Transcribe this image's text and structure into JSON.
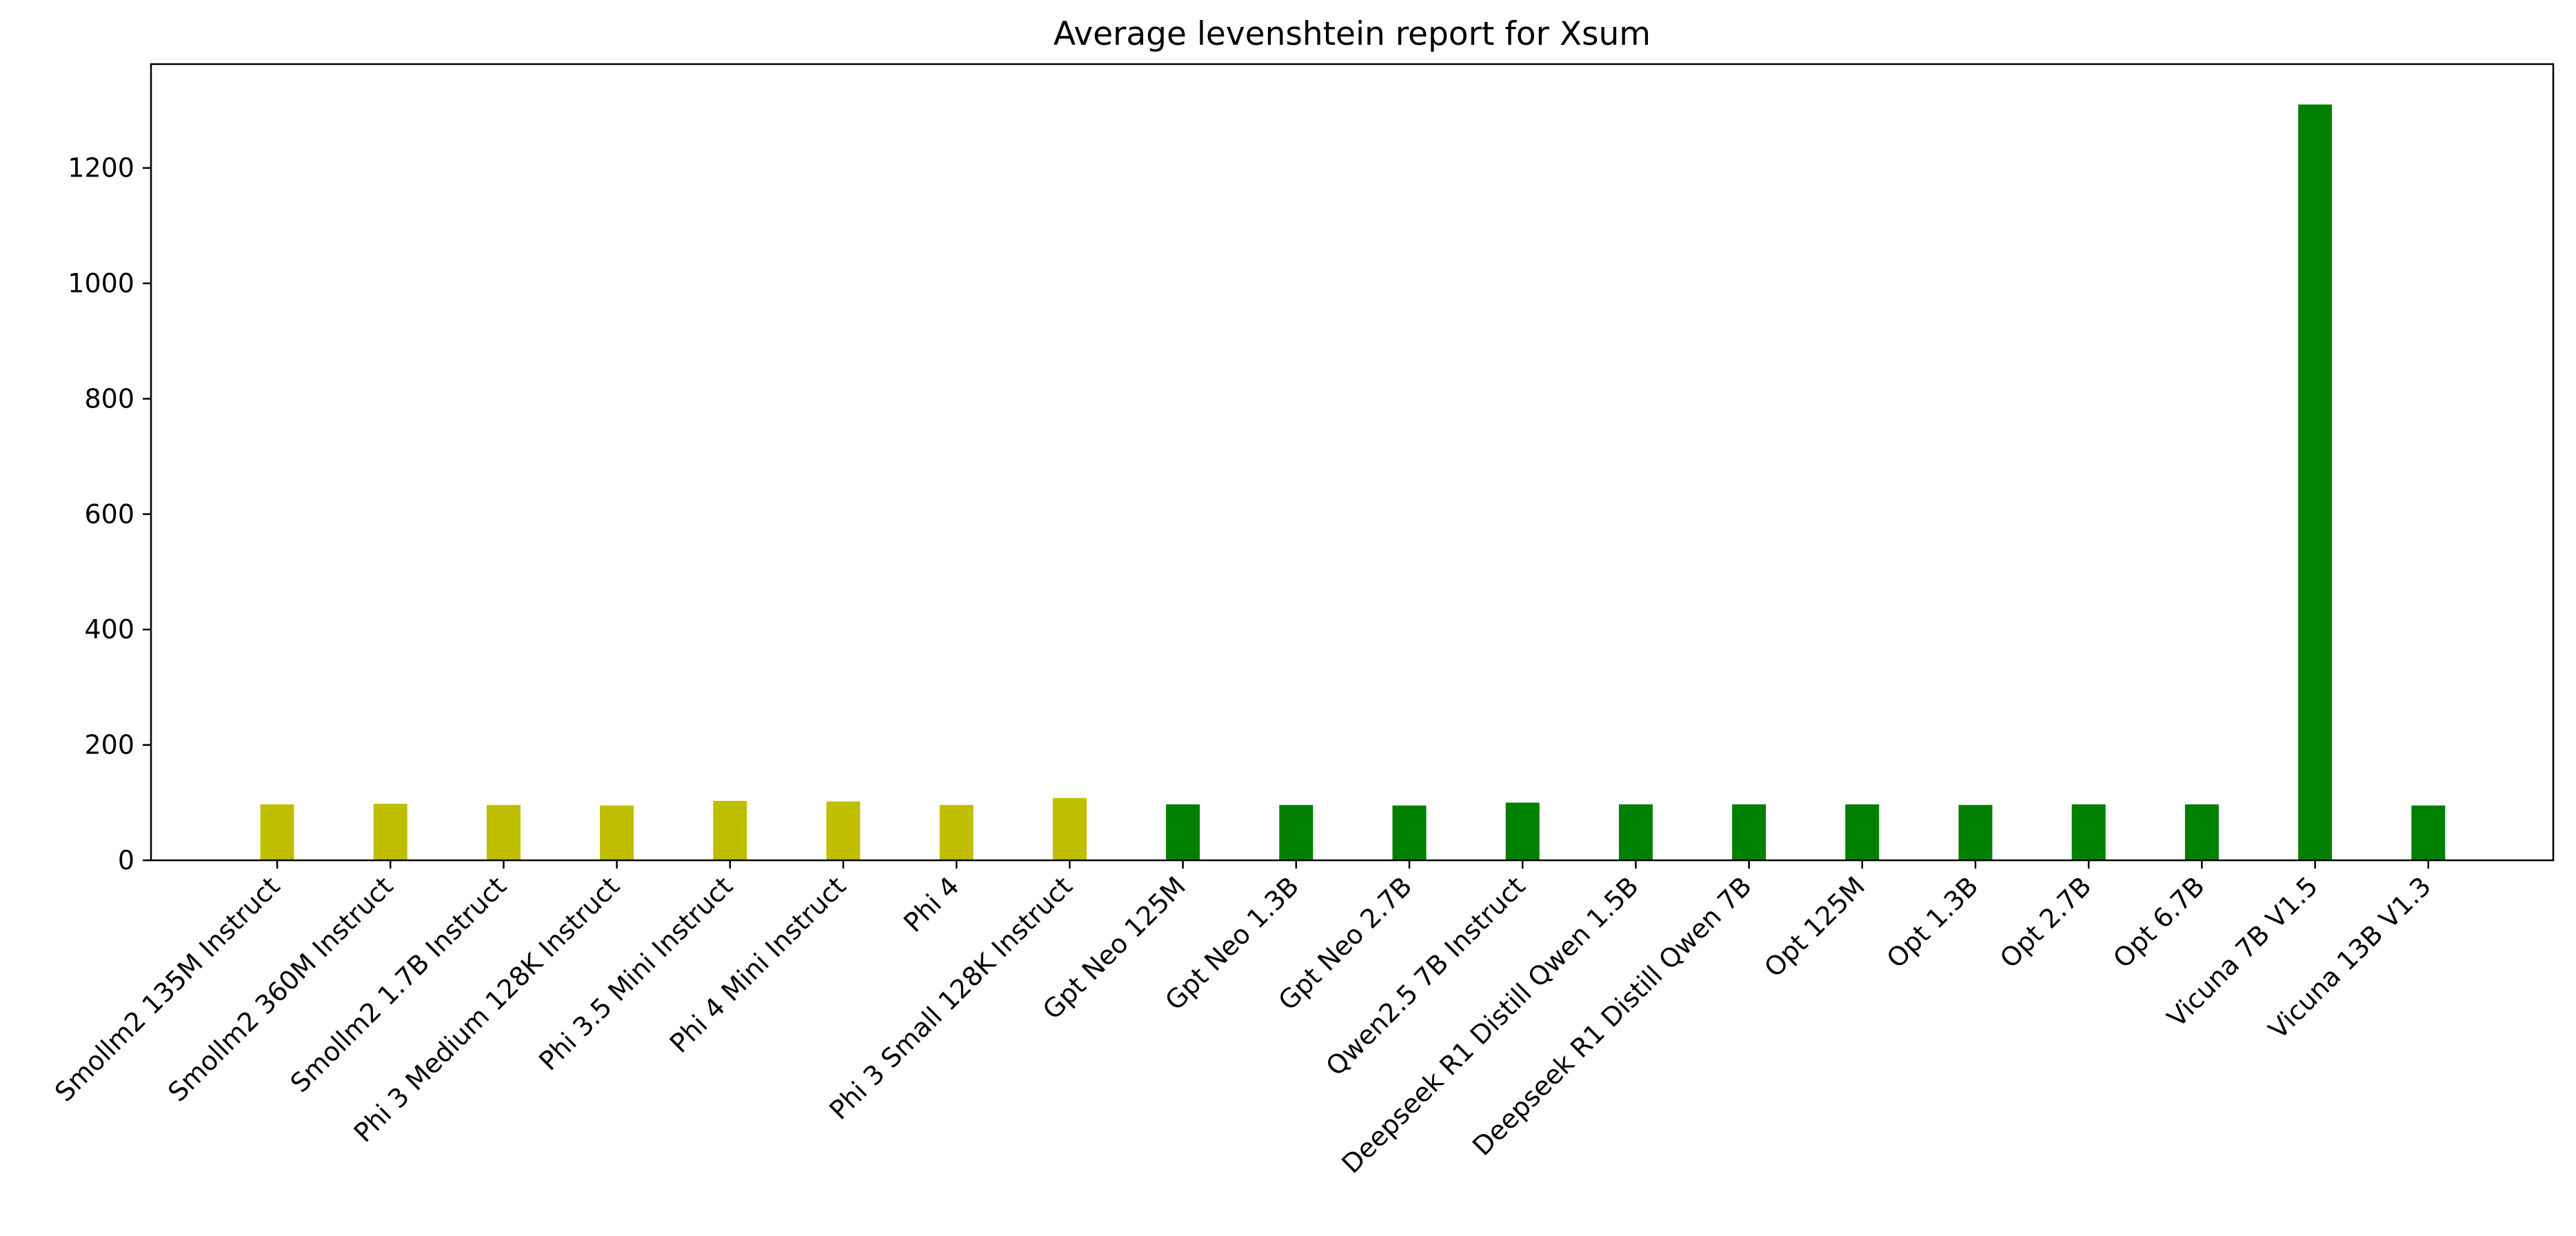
{
  "chart_data": {
    "type": "bar",
    "title": "Average levenshtein report for Xsum",
    "xlabel": "",
    "ylabel": "",
    "ylim": [
      0,
      1380
    ],
    "yticks": [
      0,
      200,
      400,
      600,
      800,
      1000,
      1200
    ],
    "grid": false,
    "legend": "none",
    "categories": [
      "Smollm2 135M Instruct",
      "Smollm2 360M Instruct",
      "Smollm2 1.7B Instruct",
      "Phi 3 Medium 128K Instruct",
      "Phi 3.5 Mini Instruct",
      "Phi 4 Mini Instruct",
      "Phi 4",
      "Phi 3 Small 128K Instruct",
      "Gpt Neo 125M",
      "Gpt Neo 1.3B",
      "Gpt Neo 2.7B",
      "Qwen2.5 7B Instruct",
      "Deepseek R1 Distill Qwen 1.5B",
      "Deepseek R1 Distill Qwen 7B",
      "Opt 125M",
      "Opt 1.3B",
      "Opt 2.7B",
      "Opt 6.7B",
      "Vicuna 7B V1.5",
      "Vicuna 13B V1.3"
    ],
    "values": [
      97,
      98,
      96,
      95,
      103,
      102,
      96,
      108,
      97,
      96,
      95,
      100,
      97,
      97,
      97,
      96,
      97,
      97,
      1310,
      95
    ],
    "bar_colors": [
      "#bfbf00",
      "#bfbf00",
      "#bfbf00",
      "#bfbf00",
      "#bfbf00",
      "#bfbf00",
      "#bfbf00",
      "#bfbf00",
      "#008000",
      "#008000",
      "#008000",
      "#008000",
      "#008000",
      "#008000",
      "#008000",
      "#008000",
      "#008000",
      "#008000",
      "#008000",
      "#008000"
    ]
  }
}
